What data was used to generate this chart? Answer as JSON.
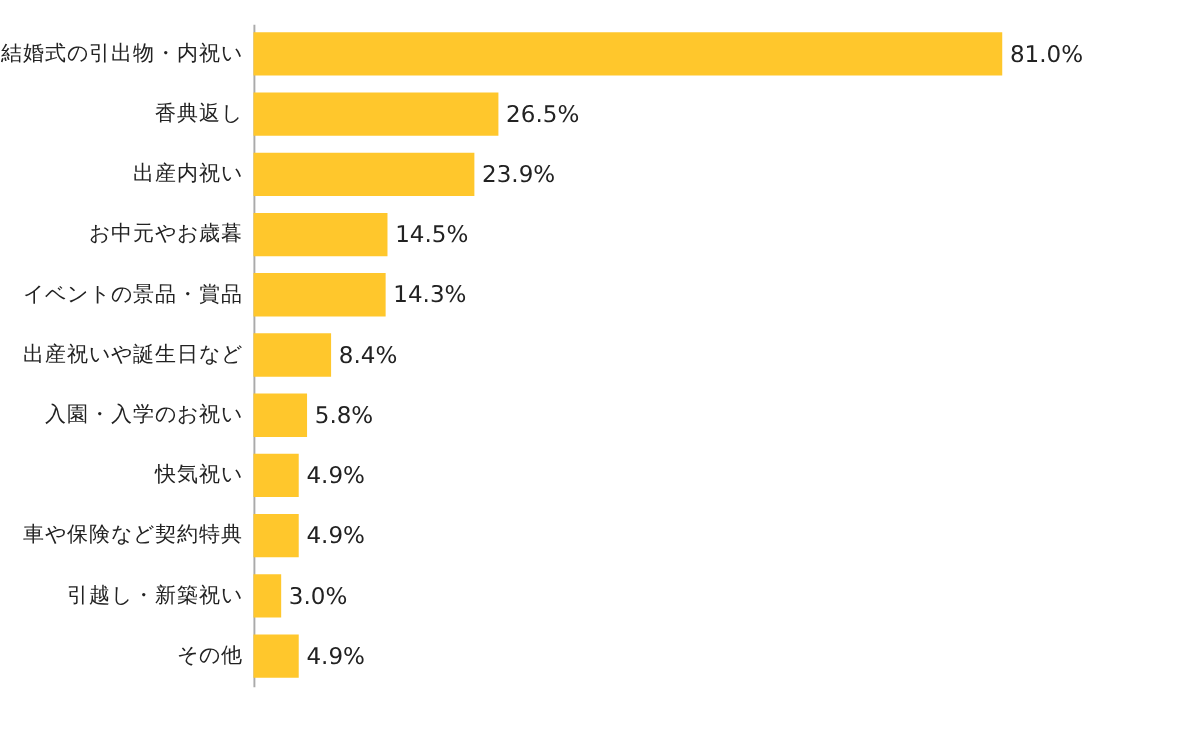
{
  "chart_data": {
    "type": "bar",
    "orientation": "horizontal",
    "categories": [
      "結婚式の引出物・内祝い",
      "香典返し",
      "出産内祝い",
      "お中元やお歳暮",
      "イベントの景品・賞品",
      "出産祝いや誕生日など",
      "入園・入学のお祝い",
      "快気祝い",
      "車や保険など契約特典",
      "引越し・新築祝い",
      "その他"
    ],
    "values": [
      81.0,
      26.5,
      23.9,
      14.5,
      14.3,
      8.4,
      5.8,
      4.9,
      4.9,
      3.0,
      4.9
    ],
    "value_labels": [
      "81.0%",
      "26.5%",
      "23.9%",
      "14.5%",
      "14.3%",
      "8.4%",
      "5.8%",
      "4.9%",
      "4.9%",
      "3.0%",
      "4.9%"
    ],
    "color": "#ffc72c",
    "tick_labels": "y"
  }
}
